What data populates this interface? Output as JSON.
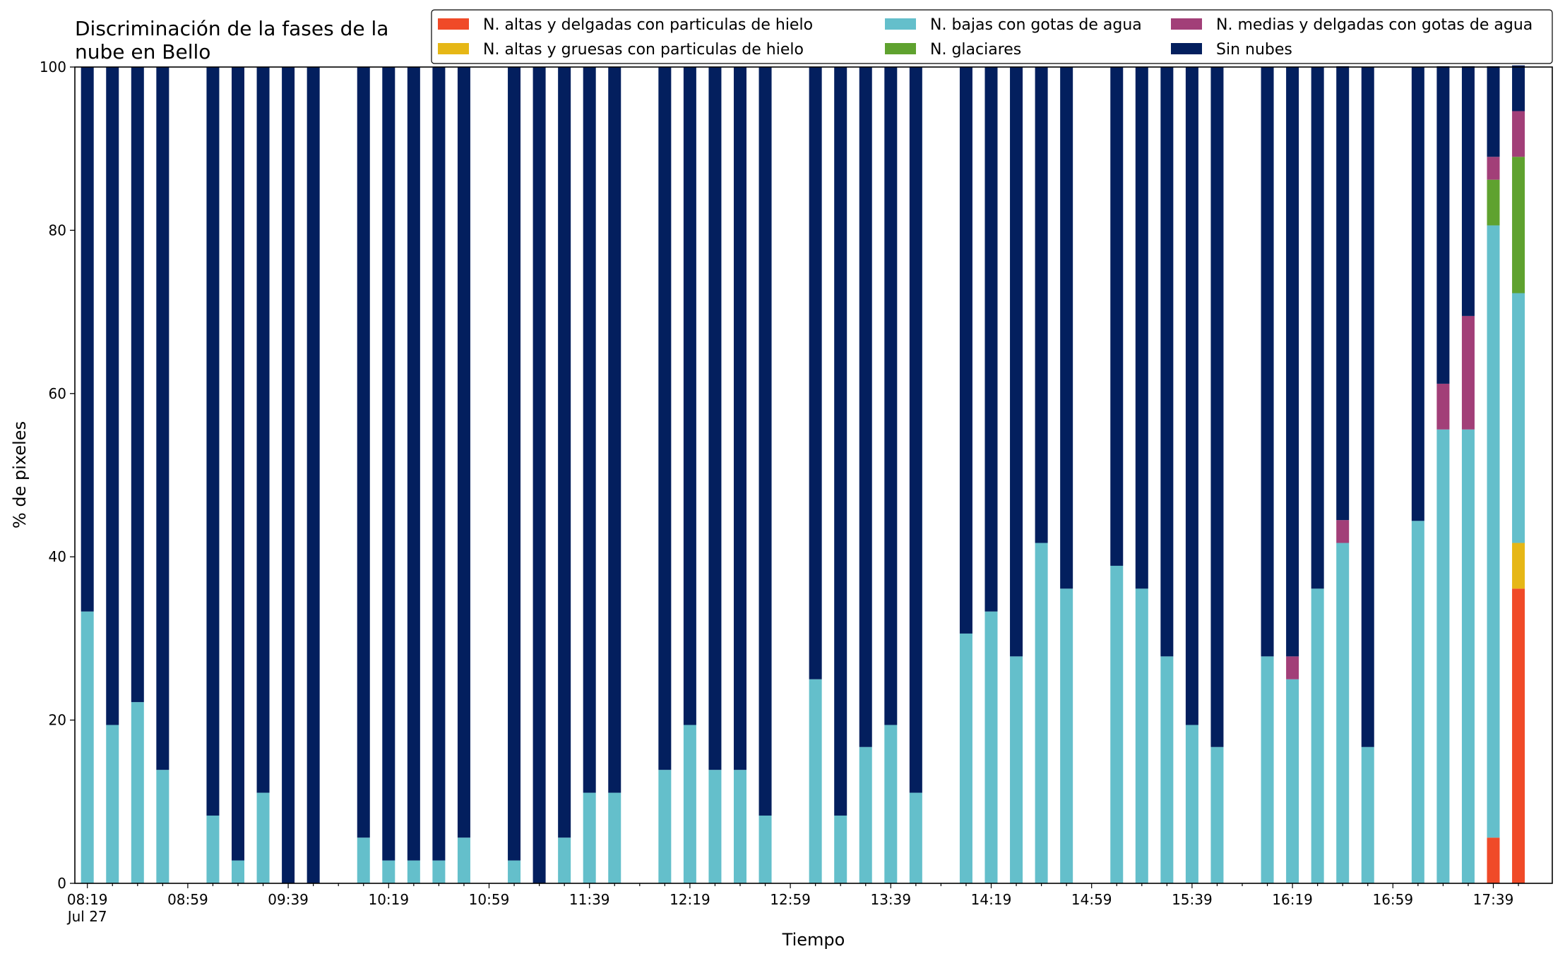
{
  "chart_data": {
    "type": "bar",
    "stacked": true,
    "title_lines": [
      "Discriminación de la fases de la",
      "nube en Bello"
    ],
    "xlabel": "Tiempo",
    "ylabel": "% de pixeles",
    "ylim": [
      0,
      100
    ],
    "yticks": [
      "0",
      "20",
      "40",
      "60",
      "80",
      "100"
    ],
    "xtick_labels": [
      "08:19",
      "08:59",
      "09:39",
      "10:19",
      "10:59",
      "11:39",
      "12:19",
      "12:59",
      "13:39",
      "14:19",
      "14:59",
      "15:39",
      "16:19",
      "16:59",
      "17:39"
    ],
    "xtick_sublabel": "Jul 27",
    "legend_position": "top-right",
    "grid": false,
    "categories": [
      "08:19",
      "08:29",
      "08:39",
      "08:49",
      "08:59",
      "09:09",
      "09:19",
      "09:29",
      "09:39",
      "09:49",
      "09:59",
      "10:09",
      "10:19",
      "10:29",
      "10:39",
      "10:49",
      "10:59",
      "11:09",
      "11:19",
      "11:29",
      "11:39",
      "11:49",
      "11:59",
      "12:09",
      "12:19",
      "12:29",
      "12:39",
      "12:49",
      "12:59",
      "13:09",
      "13:19",
      "13:29",
      "13:39",
      "13:49",
      "13:59",
      "14:09",
      "14:19",
      "14:29",
      "14:39",
      "14:49",
      "14:59",
      "15:09",
      "15:19",
      "15:29",
      "15:39",
      "15:49",
      "15:59",
      "16:09",
      "16:19",
      "16:29",
      "16:39",
      "16:49",
      "16:59",
      "17:09",
      "17:19",
      "17:29",
      "17:39",
      "17:49"
    ],
    "series": [
      {
        "name": "N. altas y delgadas con particulas de hielo",
        "color": "#f04a28",
        "values": [
          0,
          0,
          0,
          0,
          null,
          0,
          0,
          0,
          0,
          0,
          null,
          0,
          0,
          0,
          0,
          0,
          null,
          0,
          0,
          0,
          0,
          0,
          null,
          0,
          0,
          0,
          0,
          0,
          null,
          0,
          0,
          0,
          0,
          0,
          null,
          0,
          0,
          0,
          0,
          0,
          null,
          0,
          0,
          0,
          0,
          0,
          null,
          0,
          0,
          0,
          0,
          0,
          null,
          0,
          0,
          0,
          5.6,
          36.1
        ]
      },
      {
        "name": "N. altas y gruesas con particulas de hielo",
        "color": "#e6b716",
        "values": [
          0,
          0,
          0,
          0,
          null,
          0,
          0,
          0,
          0,
          0,
          null,
          0,
          0,
          0,
          0,
          0,
          null,
          0,
          0,
          0,
          0,
          0,
          null,
          0,
          0,
          0,
          0,
          0,
          null,
          0,
          0,
          0,
          0,
          0,
          null,
          0,
          0,
          0,
          0,
          0,
          null,
          0,
          0,
          0,
          0,
          0,
          null,
          0,
          0,
          0,
          0,
          0,
          null,
          0,
          0,
          0,
          0,
          5.6
        ]
      },
      {
        "name": "N. bajas con gotas de agua",
        "color": "#64bfcb",
        "values": [
          33.3,
          19.4,
          22.2,
          13.9,
          null,
          8.3,
          2.8,
          11.1,
          0,
          0,
          null,
          5.6,
          2.8,
          2.8,
          2.8,
          5.6,
          null,
          2.8,
          0,
          5.6,
          11.1,
          11.1,
          null,
          13.9,
          19.4,
          13.9,
          13.9,
          8.3,
          null,
          25,
          8.3,
          16.7,
          19.4,
          11.1,
          null,
          30.6,
          33.3,
          27.8,
          41.7,
          36.1,
          null,
          38.9,
          36.1,
          27.8,
          19.4,
          16.7,
          null,
          27.8,
          25,
          36.1,
          41.7,
          16.7,
          null,
          44.4,
          55.6,
          55.6,
          75,
          30.6
        ]
      },
      {
        "name": "N. glaciares",
        "color": "#5fa22f",
        "values": [
          0,
          0,
          0,
          0,
          null,
          0,
          0,
          0,
          0,
          0,
          null,
          0,
          0,
          0,
          0,
          0,
          null,
          0,
          0,
          0,
          0,
          0,
          null,
          0,
          0,
          0,
          0,
          0,
          null,
          0,
          0,
          0,
          0,
          0,
          null,
          0,
          0,
          0,
          0,
          0,
          null,
          0,
          0,
          0,
          0,
          0,
          null,
          0,
          0,
          0,
          0,
          0,
          null,
          0,
          0,
          0,
          5.6,
          16.7
        ]
      },
      {
        "name": "N. medias y delgadas con gotas de agua",
        "color": "#a23f78",
        "values": [
          0,
          0,
          0,
          0,
          null,
          0,
          0,
          0,
          0,
          0,
          null,
          0,
          0,
          0,
          0,
          0,
          null,
          0,
          0,
          0,
          0,
          0,
          null,
          0,
          0,
          0,
          0,
          0,
          null,
          0,
          0,
          0,
          0,
          0,
          null,
          0,
          0,
          0,
          0,
          0,
          null,
          0,
          0,
          0,
          0,
          0,
          null,
          0,
          2.8,
          0,
          2.8,
          0,
          null,
          0,
          5.6,
          13.9,
          2.8,
          5.6
        ]
      },
      {
        "name": "Sin nubes",
        "color": "#031f5e",
        "values": [
          66.7,
          80.6,
          77.8,
          86.1,
          null,
          91.7,
          97.2,
          88.9,
          100,
          100,
          null,
          94.4,
          97.2,
          97.2,
          97.2,
          94.4,
          null,
          97.2,
          100,
          94.4,
          88.9,
          88.9,
          null,
          86.1,
          80.6,
          86.1,
          86.1,
          91.7,
          null,
          75,
          91.7,
          83.3,
          80.6,
          88.9,
          null,
          69.4,
          66.7,
          72.2,
          58.3,
          63.9,
          null,
          61.1,
          63.9,
          72.2,
          80.6,
          83.3,
          null,
          72.2,
          72.2,
          63.9,
          55.6,
          83.3,
          null,
          55.6,
          38.9,
          30.6,
          11.1,
          5.6
        ]
      }
    ]
  }
}
